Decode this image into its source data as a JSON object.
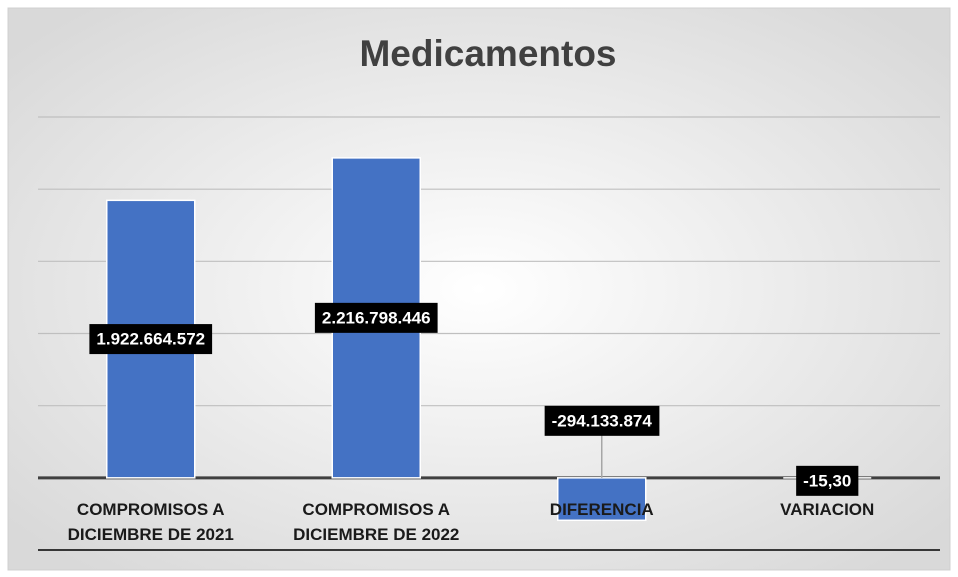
{
  "chart_data": {
    "type": "bar",
    "title": "Medicamentos",
    "categories": [
      "COMPROMISOS A DICIEMBRE DE 2021",
      "COMPROMISOS A DICIEMBRE DE 2022",
      "DIFERENCIA",
      "VARIACION"
    ],
    "values": [
      1922664572,
      2216798446,
      -294133874,
      -15.3
    ],
    "value_labels": [
      "1.922.664.572",
      "2.216.798.446",
      "-294.133.874",
      "-15,30"
    ],
    "color": "#4472c4",
    "ylim": [
      -500000000,
      2500000000
    ],
    "yticks": [
      -500000000,
      0,
      500000000,
      1000000000,
      1500000000,
      2000000000,
      2500000000
    ],
    "grid": true
  }
}
